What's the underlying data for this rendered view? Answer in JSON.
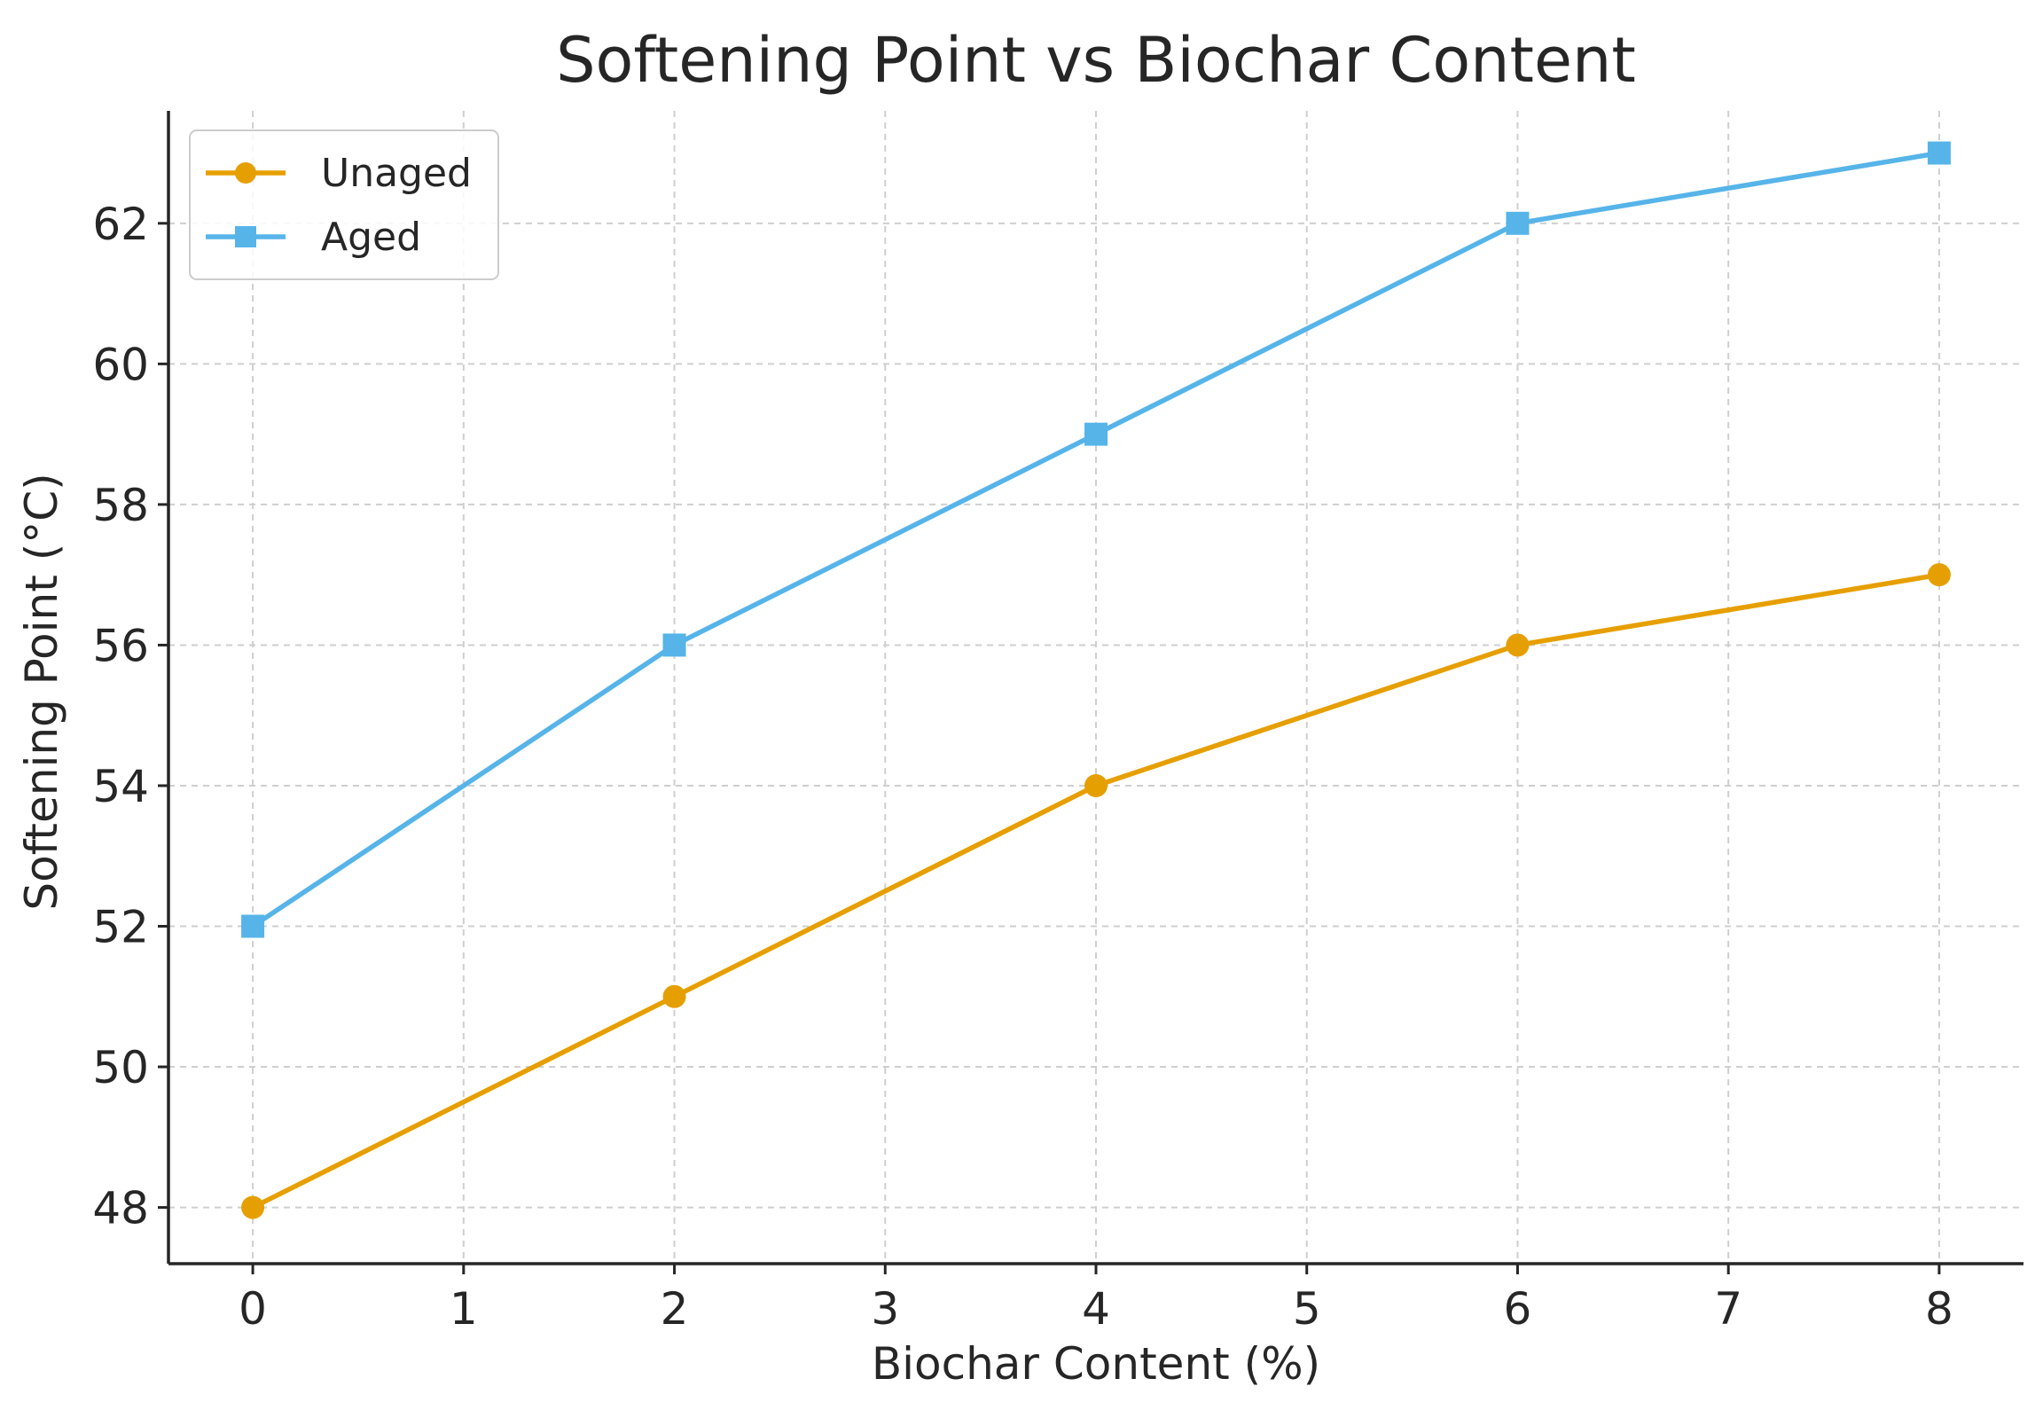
{
  "chart_data": {
    "type": "line",
    "title": "Softening Point vs Biochar Content",
    "xlabel": "Biochar Content (%)",
    "ylabel": "Softening Point (°C)",
    "x": [
      0,
      2,
      4,
      6,
      8
    ],
    "xlim": [
      -0.4,
      8.4
    ],
    "ylim": [
      47.2,
      63.6
    ],
    "xticks": [
      0,
      1,
      2,
      3,
      4,
      5,
      6,
      7,
      8
    ],
    "yticks": [
      48,
      50,
      52,
      54,
      56,
      58,
      60,
      62
    ],
    "grid": true,
    "legend_position": "top-left",
    "series": [
      {
        "name": "Unaged",
        "values": [
          48,
          51,
          54,
          56,
          57
        ],
        "color": "#E69F00",
        "marker": "circle"
      },
      {
        "name": "Aged",
        "values": [
          52,
          56,
          59,
          62,
          63
        ],
        "color": "#56B4E9",
        "marker": "square"
      }
    ]
  }
}
